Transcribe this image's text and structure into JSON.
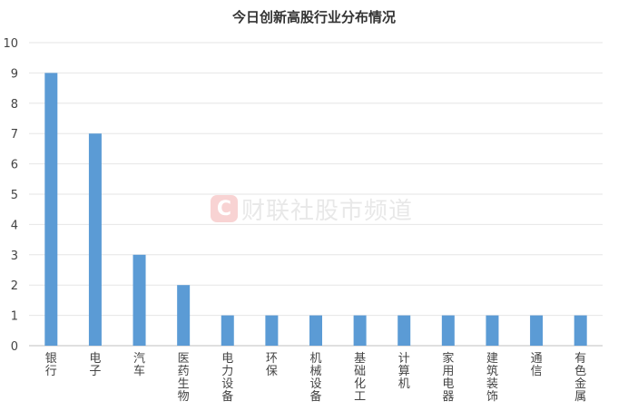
{
  "watermark": {
    "logo_letter": "C",
    "text": "财联社股市频道"
  },
  "chart_data": {
    "type": "bar",
    "title": "今日创新高股行业分布情况",
    "categories": [
      "银行",
      "电子",
      "汽车",
      "医药生物",
      "电力设备",
      "环保",
      "机械设备",
      "基础化工",
      "计算机",
      "家用电器",
      "建筑装饰",
      "通信",
      "有色金属"
    ],
    "values": [
      9,
      7,
      3,
      2,
      1,
      1,
      1,
      1,
      1,
      1,
      1,
      1,
      1
    ],
    "ylim": [
      0,
      10
    ],
    "yticks": [
      0,
      1,
      2,
      3,
      4,
      5,
      6,
      7,
      8,
      9,
      10
    ],
    "xlabel": "",
    "ylabel": "",
    "grid": true,
    "legend": "none",
    "bar_color": "#5b9bd5"
  }
}
